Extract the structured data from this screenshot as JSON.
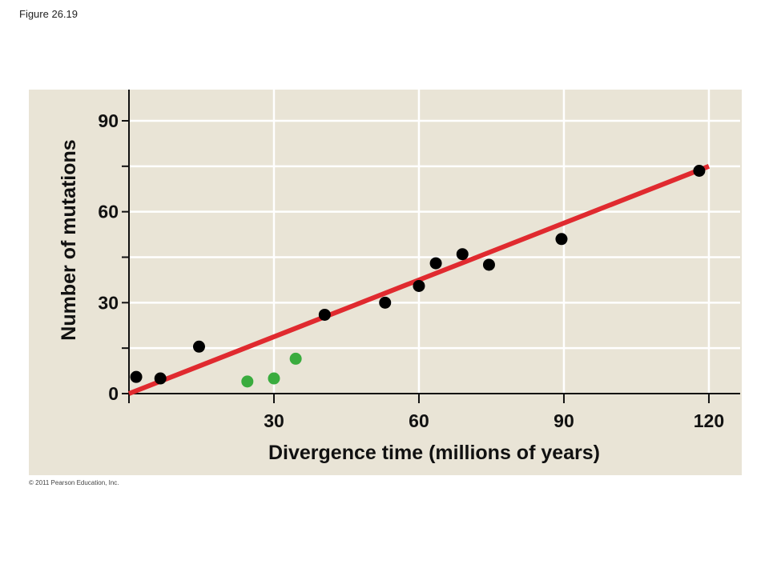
{
  "figure_label": "Figure 26.19",
  "copyright": "© 2011 Pearson Education, Inc.",
  "chart_data": {
    "type": "scatter",
    "xlabel": "Divergence time (millions of years)",
    "ylabel": "Number of mutations",
    "xlim": [
      0,
      126
    ],
    "ylim": [
      0,
      100
    ],
    "x_ticks": [
      30,
      60,
      90,
      120
    ],
    "y_ticks": [
      0,
      30,
      60,
      90
    ],
    "y_minor_ticks": [
      15,
      45,
      75
    ],
    "grid": true,
    "colors": {
      "black_points": "#000000",
      "green_points": "#3aac3e",
      "line": "#e02a2f",
      "gridline": "#ffffff",
      "background": "#e9e4d6"
    },
    "series": [
      {
        "color": "#000000",
        "points": [
          {
            "x": 1.5,
            "y": 5.5
          },
          {
            "x": 6.5,
            "y": 5
          },
          {
            "x": 14.5,
            "y": 15.5
          },
          {
            "x": 40.5,
            "y": 26
          },
          {
            "x": 53,
            "y": 30
          },
          {
            "x": 60,
            "y": 35.5
          },
          {
            "x": 63.5,
            "y": 43
          },
          {
            "x": 69,
            "y": 46
          },
          {
            "x": 74.5,
            "y": 42.5
          },
          {
            "x": 89.5,
            "y": 51
          },
          {
            "x": 118,
            "y": 73.5
          }
        ]
      },
      {
        "color": "#3aac3e",
        "points": [
          {
            "x": 24.5,
            "y": 4
          },
          {
            "x": 30,
            "y": 5
          },
          {
            "x": 34.5,
            "y": 11.5
          }
        ]
      }
    ],
    "trendline": {
      "x": [
        0,
        120
      ],
      "y": [
        0,
        75
      ]
    }
  }
}
